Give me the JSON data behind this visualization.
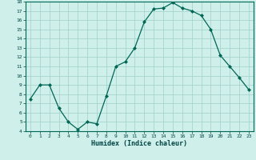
{
  "x": [
    0,
    1,
    2,
    3,
    4,
    5,
    6,
    7,
    8,
    9,
    10,
    11,
    12,
    13,
    14,
    15,
    16,
    17,
    18,
    19,
    20,
    21,
    22,
    23
  ],
  "y": [
    7.5,
    9.0,
    9.0,
    6.5,
    5.0,
    4.2,
    5.0,
    4.8,
    7.8,
    11.0,
    11.5,
    13.0,
    15.8,
    17.2,
    17.3,
    17.9,
    17.3,
    17.0,
    16.5,
    15.0,
    12.2,
    11.0,
    9.8,
    8.5
  ],
  "xlabel": "Humidex (Indice chaleur)",
  "ylabel": "",
  "bg_color": "#cff0ea",
  "grid_color": "#a0cec8",
  "line_color": "#006655",
  "marker_color": "#006655",
  "xlim": [
    -0.5,
    23.5
  ],
  "ylim": [
    4,
    18
  ],
  "yticks": [
    4,
    5,
    6,
    7,
    8,
    9,
    10,
    11,
    12,
    13,
    14,
    15,
    16,
    17,
    18
  ],
  "xticks": [
    0,
    1,
    2,
    3,
    4,
    5,
    6,
    7,
    8,
    9,
    10,
    11,
    12,
    13,
    14,
    15,
    16,
    17,
    18,
    19,
    20,
    21,
    22,
    23
  ]
}
